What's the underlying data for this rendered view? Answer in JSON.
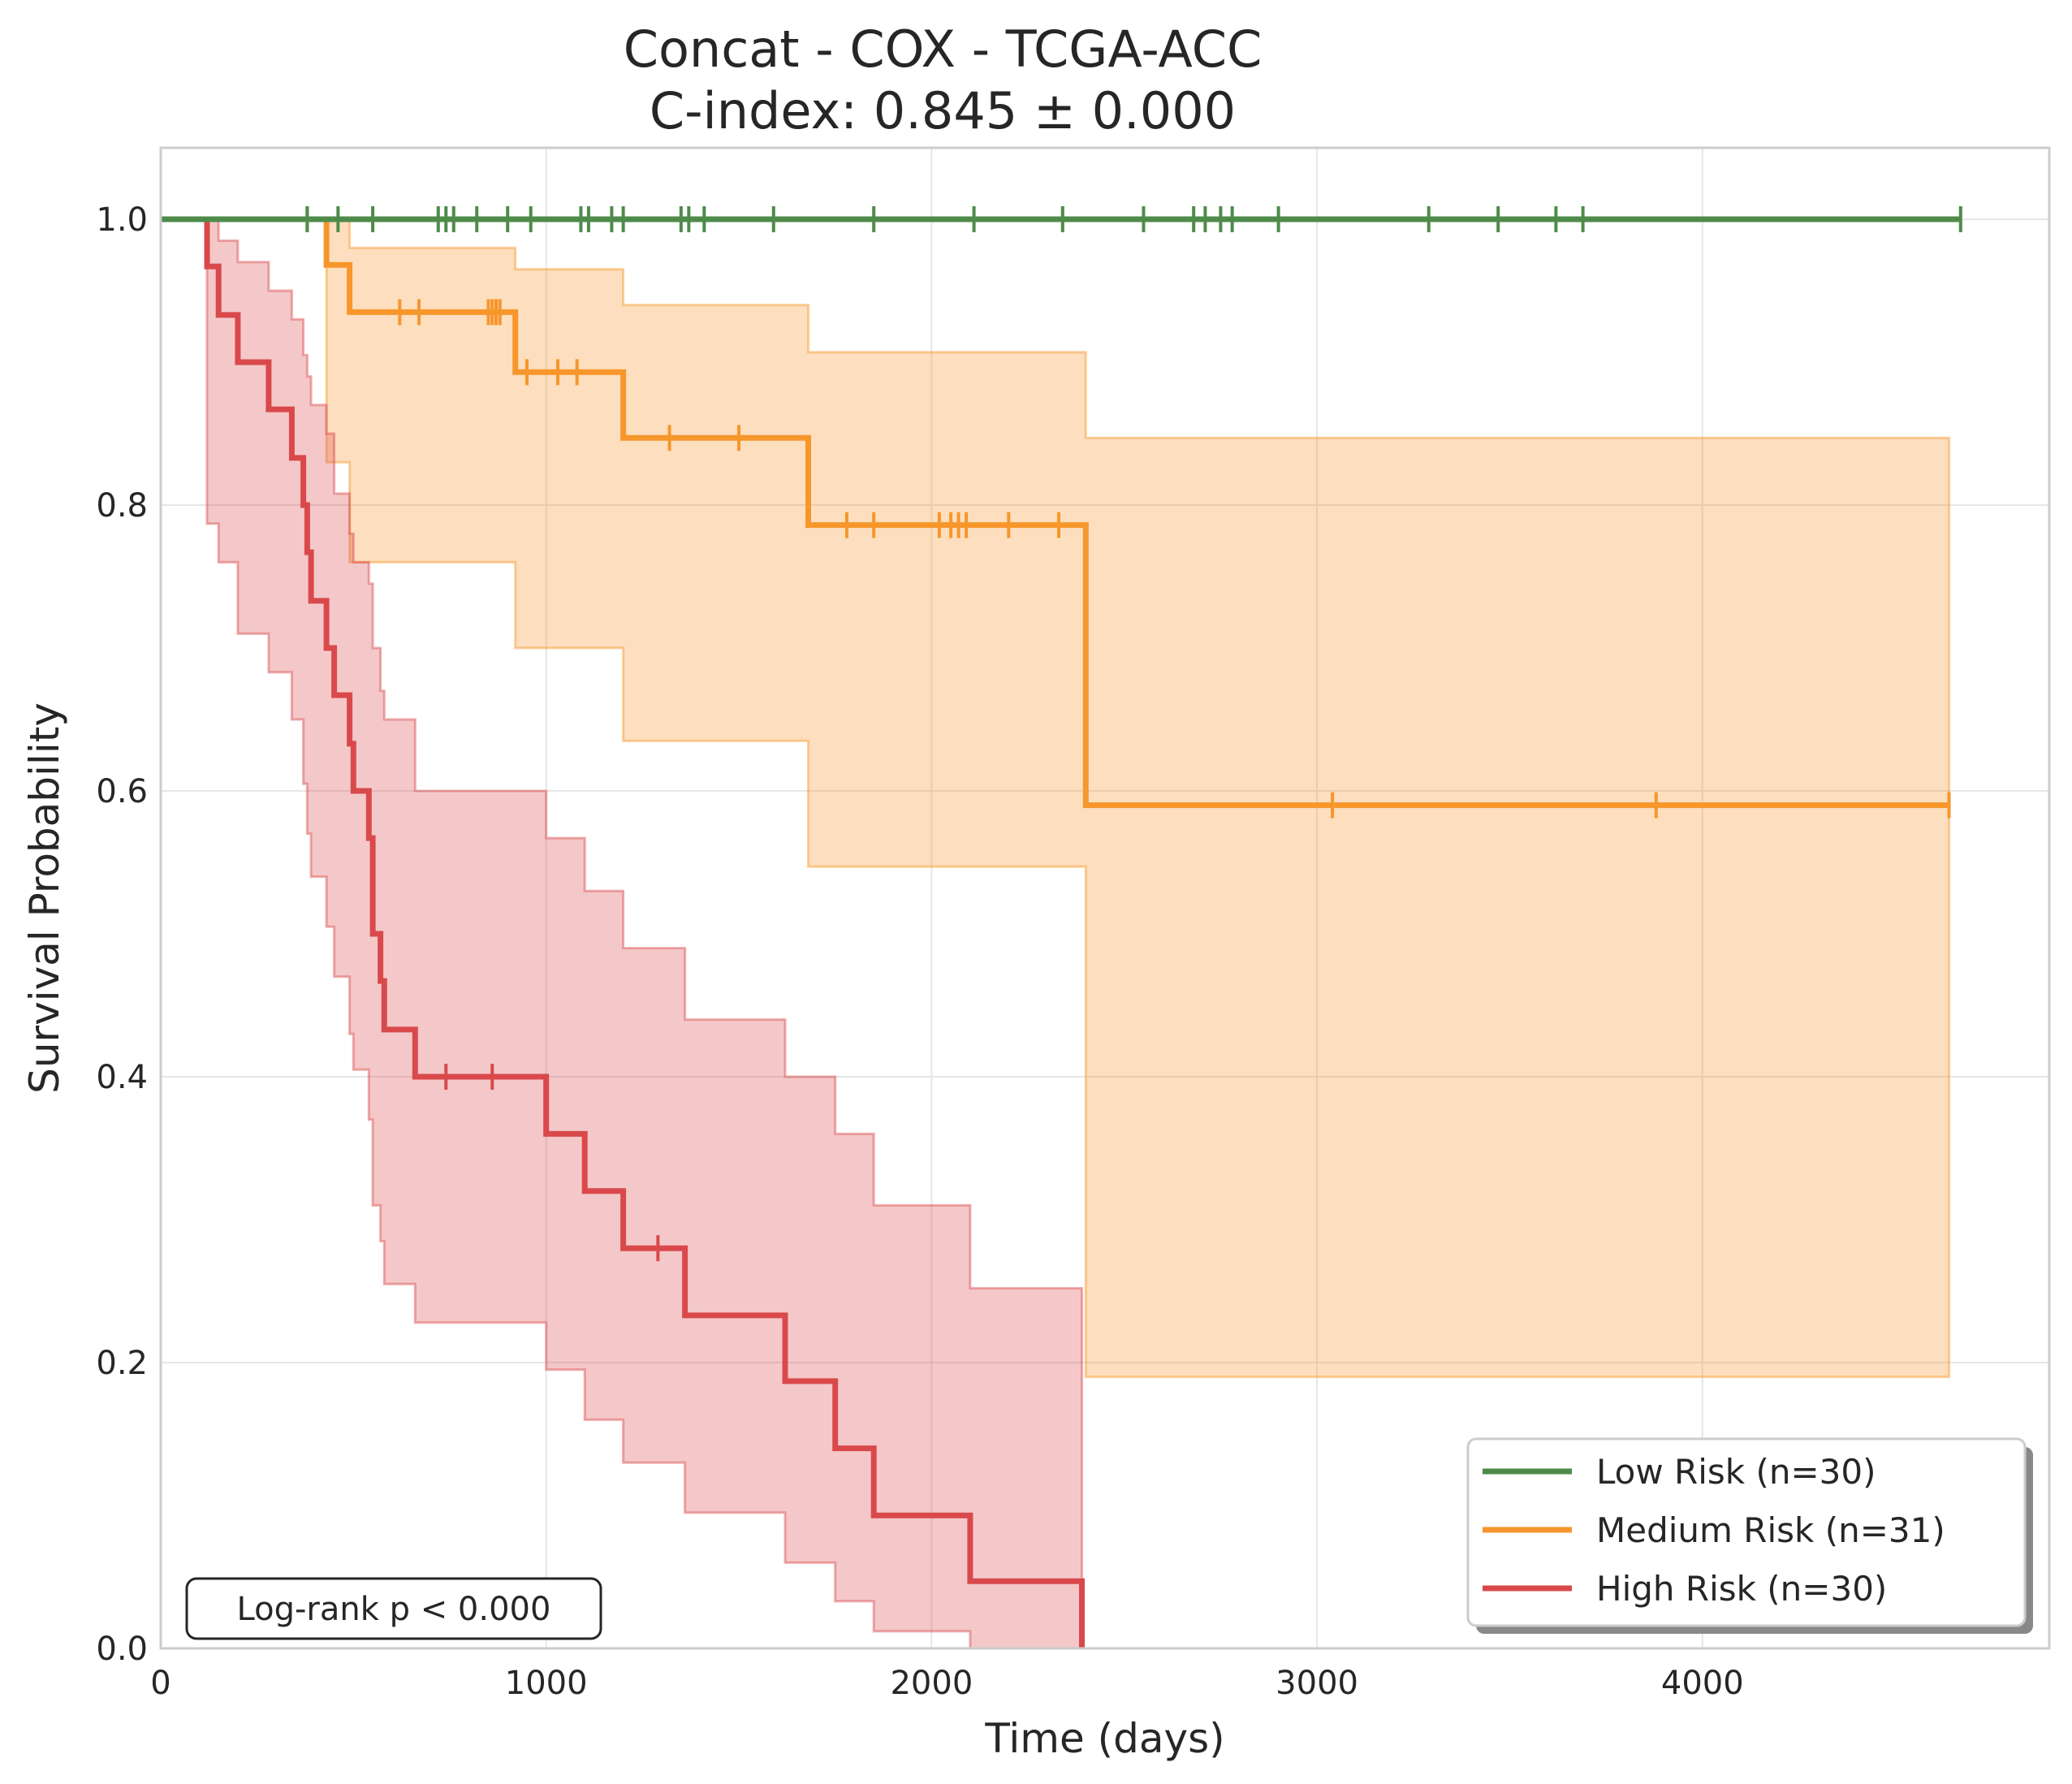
{
  "chart_data": {
    "type": "line",
    "subtype": "kaplan-meier",
    "title": "Concat - COX - TCGA-ACC",
    "subtitle": "C-index: 0.845 ± 0.000",
    "xlabel": "Time (days)",
    "ylabel": "Survival Probability",
    "xlim": [
      0,
      4900
    ],
    "ylim": [
      0,
      1.05
    ],
    "xticks": [
      0,
      1000,
      2000,
      3000,
      4000
    ],
    "xtick_labels": [
      "0",
      "1000",
      "2000",
      "3000",
      "4000"
    ],
    "yticks": [
      0,
      0.2,
      0.4,
      0.6,
      0.8,
      1.0
    ],
    "ytick_labels": [
      "0.0",
      "0.2",
      "0.4",
      "0.6",
      "0.8",
      "1.0"
    ],
    "grid": true,
    "legend_position": "lower-right",
    "annotation": "Log-rank p < 0.000",
    "series": [
      {
        "name": "Low Risk (n=30)",
        "color": "#4e8b4a",
        "steps": [
          [
            0,
            1.0
          ],
          [
            4670,
            1.0
          ]
        ],
        "censored": [
          380,
          460,
          550,
          720,
          740,
          760,
          820,
          900,
          960,
          1090,
          1110,
          1170,
          1200,
          1350,
          1370,
          1410,
          1590,
          1850,
          2110,
          2340,
          2550,
          2680,
          2710,
          2750,
          2780,
          2900,
          3290,
          3470,
          3620,
          3690,
          4670
        ],
        "ci": []
      },
      {
        "name": "Medium Risk (n=31)",
        "color": "#f7962b",
        "steps": [
          [
            0,
            1.0
          ],
          [
            430,
            0.968
          ],
          [
            490,
            0.935
          ],
          [
            920,
            0.893
          ],
          [
            1200,
            0.847
          ],
          [
            1680,
            0.786
          ],
          [
            2400,
            0.59
          ],
          [
            4640,
            0.59
          ]
        ],
        "censored": [
          380,
          620,
          670,
          850,
          860,
          870,
          880,
          950,
          1030,
          1080,
          1320,
          1500,
          1780,
          1850,
          2020,
          2050,
          2070,
          2090,
          2200,
          2330,
          3040,
          3880,
          4640
        ],
        "ci": [
          [
            0,
            1.0,
            1.0
          ],
          [
            430,
            0.83,
            1.0
          ],
          [
            490,
            0.76,
            0.98
          ],
          [
            920,
            0.7,
            0.965
          ],
          [
            1200,
            0.635,
            0.94
          ],
          [
            1680,
            0.547,
            0.907
          ],
          [
            2400,
            0.19,
            0.847
          ],
          [
            4640,
            0.19,
            0.847
          ]
        ]
      },
      {
        "name": "High Risk (n=30)",
        "color": "#d9494b",
        "steps": [
          [
            0,
            1.0
          ],
          [
            120,
            0.967
          ],
          [
            150,
            0.933
          ],
          [
            200,
            0.9
          ],
          [
            280,
            0.867
          ],
          [
            340,
            0.833
          ],
          [
            370,
            0.8
          ],
          [
            380,
            0.767
          ],
          [
            390,
            0.733
          ],
          [
            430,
            0.7
          ],
          [
            450,
            0.667
          ],
          [
            490,
            0.633
          ],
          [
            500,
            0.6
          ],
          [
            540,
            0.567
          ],
          [
            550,
            0.5
          ],
          [
            570,
            0.467
          ],
          [
            580,
            0.433
          ],
          [
            660,
            0.4
          ],
          [
            1000,
            0.36
          ],
          [
            1100,
            0.32
          ],
          [
            1200,
            0.28
          ],
          [
            1360,
            0.233
          ],
          [
            1620,
            0.187
          ],
          [
            1750,
            0.14
          ],
          [
            1850,
            0.093
          ],
          [
            2100,
            0.047
          ],
          [
            2390,
            0.0
          ]
        ],
        "censored": [
          740,
          860,
          1290
        ],
        "ci": [
          [
            0,
            1.0,
            1.0
          ],
          [
            120,
            0.787,
            1.0
          ],
          [
            150,
            0.76,
            0.985
          ],
          [
            200,
            0.71,
            0.97
          ],
          [
            280,
            0.683,
            0.95
          ],
          [
            340,
            0.65,
            0.93
          ],
          [
            370,
            0.605,
            0.905
          ],
          [
            380,
            0.57,
            0.89
          ],
          [
            390,
            0.54,
            0.87
          ],
          [
            430,
            0.505,
            0.85
          ],
          [
            450,
            0.47,
            0.808
          ],
          [
            490,
            0.43,
            0.78
          ],
          [
            500,
            0.405,
            0.76
          ],
          [
            540,
            0.37,
            0.745
          ],
          [
            550,
            0.31,
            0.7
          ],
          [
            570,
            0.285,
            0.67
          ],
          [
            580,
            0.255,
            0.65
          ],
          [
            660,
            0.228,
            0.6
          ],
          [
            1000,
            0.195,
            0.567
          ],
          [
            1100,
            0.16,
            0.53
          ],
          [
            1200,
            0.13,
            0.49
          ],
          [
            1360,
            0.095,
            0.44
          ],
          [
            1620,
            0.06,
            0.4
          ],
          [
            1750,
            0.033,
            0.36
          ],
          [
            1850,
            0.012,
            0.31
          ],
          [
            2100,
            0.0,
            0.252
          ],
          [
            2390,
            0.0,
            0.19
          ]
        ]
      }
    ]
  }
}
